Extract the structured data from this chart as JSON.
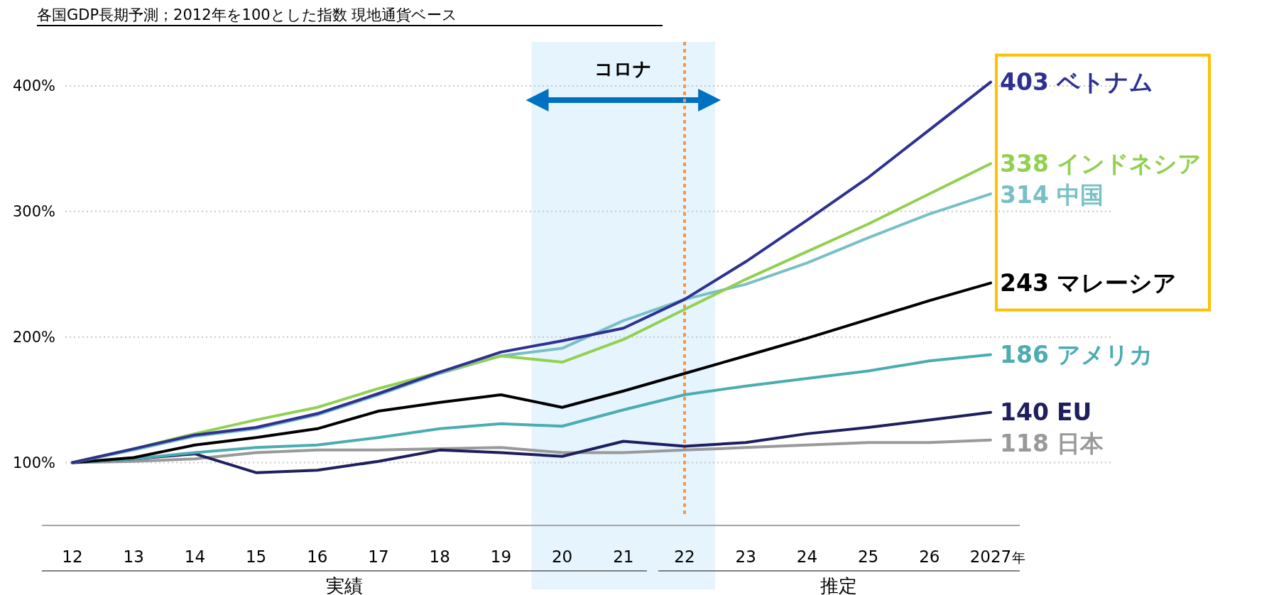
{
  "chart_data": {
    "type": "line",
    "title": "各国GDP長期予測；2012年を100とした指数 現地通貨ベース",
    "xlabel": "年",
    "categories": [
      "12",
      "13",
      "14",
      "15",
      "16",
      "17",
      "18",
      "19",
      "20",
      "21",
      "22",
      "23",
      "24",
      "25",
      "26",
      "2027"
    ],
    "ylim": [
      50,
      435
    ],
    "yticks": [
      {
        "value": 100,
        "label": "100%"
      },
      {
        "value": 200,
        "label": "200%"
      },
      {
        "value": 300,
        "label": "300%"
      },
      {
        "value": 400,
        "label": "400%"
      }
    ],
    "grid": "y",
    "legend": false,
    "line_style": "solid",
    "series": [
      {
        "name": "ベトナム",
        "color": "#2e3192",
        "values": [
          100,
          111,
          122,
          128,
          139,
          155,
          172,
          188,
          197,
          207,
          230,
          260,
          293,
          327,
          365,
          403
        ],
        "value_labels": [
          null,
          null,
          null,
          null,
          null,
          null,
          null,
          null,
          null,
          null,
          null,
          null,
          null,
          null,
          null,
          "403"
        ]
      },
      {
        "name": "インドネシア",
        "color": "#92d050",
        "values": [
          100,
          111,
          123,
          134,
          144,
          159,
          172,
          185,
          180,
          198,
          222,
          246,
          268,
          290,
          314,
          338
        ],
        "value_labels": [
          null,
          null,
          null,
          null,
          null,
          null,
          null,
          null,
          null,
          null,
          null,
          null,
          null,
          null,
          null,
          "338"
        ]
      },
      {
        "name": "中国",
        "color": "#78c0c6",
        "values": [
          100,
          110,
          121,
          127,
          138,
          154,
          171,
          185,
          191,
          213,
          230,
          242,
          259,
          279,
          298,
          314
        ],
        "value_labels": [
          null,
          null,
          null,
          null,
          null,
          null,
          null,
          null,
          null,
          null,
          null,
          null,
          null,
          null,
          null,
          "314"
        ]
      },
      {
        "name": "マレーシア",
        "color": "#000000",
        "values": [
          100,
          104,
          114,
          120,
          127,
          141,
          148,
          154,
          144,
          157,
          171,
          185,
          199,
          214,
          229,
          243
        ],
        "value_labels": [
          null,
          null,
          null,
          null,
          null,
          null,
          null,
          null,
          null,
          null,
          null,
          null,
          null,
          null,
          null,
          "243"
        ]
      },
      {
        "name": "アメリカ",
        "color": "#4bacb2",
        "values": [
          100,
          103,
          108,
          112,
          114,
          120,
          127,
          131,
          129,
          142,
          154,
          161,
          167,
          173,
          181,
          186
        ],
        "value_labels": [
          null,
          null,
          null,
          null,
          null,
          null,
          null,
          null,
          null,
          null,
          null,
          null,
          null,
          null,
          null,
          "186"
        ]
      },
      {
        "name": "EU",
        "color": "#1f1f5e",
        "values": [
          100,
          103,
          107,
          92,
          94,
          101,
          110,
          108,
          105,
          117,
          113,
          116,
          123,
          128,
          134,
          140
        ],
        "value_labels": [
          null,
          null,
          null,
          null,
          null,
          null,
          null,
          null,
          null,
          null,
          null,
          null,
          null,
          null,
          null,
          "140"
        ]
      },
      {
        "name": "日本",
        "color": "#999999",
        "values": [
          100,
          101,
          103,
          108,
          110,
          110,
          111,
          112,
          108,
          108,
          110,
          112,
          114,
          116,
          116,
          118
        ],
        "value_labels": [
          null,
          null,
          null,
          null,
          null,
          null,
          null,
          null,
          null,
          null,
          null,
          null,
          null,
          null,
          null,
          "118"
        ]
      }
    ],
    "bands": [
      {
        "axis": "x",
        "from": "20",
        "to": "22",
        "label": "コロナ",
        "color": "#e5f4fd"
      }
    ],
    "ref_lines": [
      {
        "axis": "x",
        "value": "22",
        "color": "#f79646",
        "line_style": "dotted"
      }
    ],
    "annotations": [
      "実績",
      "推定"
    ]
  }
}
